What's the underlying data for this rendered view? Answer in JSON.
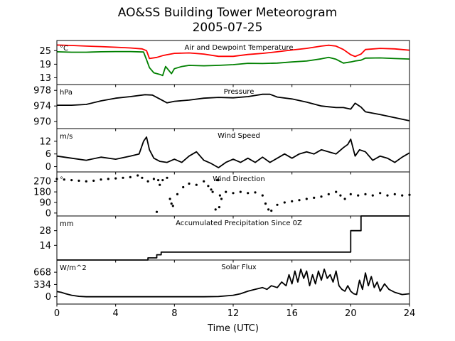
{
  "figure": {
    "title_line1": "AO&SS Building Tower Meteorogram",
    "title_line2": "2005-07-25",
    "xlabel": "Time (UTC)"
  },
  "chart_data": [
    {
      "type": "line",
      "title": "Air and Dewpoint Temperature",
      "unit_label": "°C",
      "yticks": [
        13,
        19,
        25
      ],
      "ylim": [
        10,
        29.5
      ],
      "xlim": [
        0,
        24
      ],
      "series": [
        {
          "color": "#ff0000",
          "x": [
            0,
            1,
            2,
            3,
            4,
            5,
            5.8,
            6.1,
            6.3,
            6.8,
            7.2,
            7.5,
            8,
            9,
            10,
            11,
            12,
            13,
            14,
            15,
            16,
            17,
            18,
            18.5,
            19,
            19.5,
            20,
            20.3,
            20.7,
            21,
            22,
            23,
            24
          ],
          "y": [
            27.5,
            27.3,
            27,
            26.8,
            26.5,
            26.2,
            25.8,
            25,
            21.5,
            22,
            22.8,
            23.2,
            23.8,
            24,
            23.5,
            22.5,
            22.5,
            23.3,
            23.8,
            24.5,
            25.3,
            26,
            27,
            27.4,
            27,
            25.5,
            23.2,
            22.4,
            23.5,
            25.5,
            26,
            25.8,
            25.2
          ]
        },
        {
          "color": "#008000",
          "x": [
            0,
            1,
            2,
            3,
            4,
            5,
            5.9,
            6.1,
            6.3,
            6.6,
            7,
            7.2,
            7.4,
            7.8,
            8,
            8.5,
            9,
            10,
            11,
            12,
            13,
            14,
            15,
            16,
            17,
            18,
            18.5,
            19,
            19.5,
            20,
            20.3,
            20.7,
            21,
            22,
            23,
            24
          ],
          "y": [
            24.5,
            24.3,
            24.3,
            24.5,
            24.6,
            24.6,
            24.4,
            21,
            17.5,
            15.2,
            14.5,
            14,
            18,
            14.8,
            17,
            18,
            18.5,
            18.3,
            18.5,
            18.8,
            19.4,
            19.3,
            19.5,
            20,
            20.4,
            21.4,
            22,
            21.2,
            19.5,
            20,
            20.4,
            20.8,
            21.7,
            21.8,
            21.5,
            21.3
          ]
        }
      ]
    },
    {
      "type": "line",
      "title": "Pressure",
      "unit_label": "hPa",
      "yticks": [
        970,
        974,
        978
      ],
      "ylim": [
        968.2,
        979.5
      ],
      "xlim": [
        0,
        24
      ],
      "series": [
        {
          "color": "#000000",
          "x": [
            0,
            1,
            2,
            3,
            4,
            5,
            6,
            6.5,
            7,
            7.5,
            8,
            9,
            10,
            11,
            12,
            13,
            14,
            14.5,
            15,
            16,
            17,
            18,
            18.5,
            19,
            19.5,
            20,
            20.3,
            20.7,
            21,
            22,
            23,
            24
          ],
          "y": [
            974.2,
            974.2,
            974.4,
            975.3,
            976,
            976.4,
            976.9,
            976.8,
            975.8,
            974.8,
            975.2,
            975.5,
            976,
            976.2,
            976.1,
            976.4,
            977,
            977,
            976.3,
            975.8,
            975,
            974,
            973.8,
            973.6,
            973.6,
            973.2,
            974.7,
            973.7,
            972.5,
            971.8,
            971,
            970.2
          ]
        }
      ]
    },
    {
      "type": "line",
      "title": "Wind Speed",
      "unit_label": "m/s",
      "yticks": [
        0,
        6,
        12
      ],
      "ylim": [
        -2.5,
        18
      ],
      "xlim": [
        0,
        24
      ],
      "series": [
        {
          "color": "#000000",
          "x": [
            0,
            1,
            2,
            3,
            4,
            5,
            5.6,
            5.9,
            6.1,
            6.3,
            6.6,
            7,
            7.5,
            8,
            8.5,
            9,
            9.5,
            10,
            10.5,
            11,
            11.5,
            12,
            12.5,
            13,
            13.5,
            14,
            14.5,
            15,
            15.5,
            16,
            16.5,
            17,
            17.5,
            18,
            18.5,
            19,
            19.5,
            19.8,
            20,
            20.3,
            20.6,
            21,
            21.5,
            22,
            22.5,
            23,
            23.5,
            24
          ],
          "y": [
            5,
            4,
            3,
            4.5,
            3.5,
            5,
            6,
            12,
            14,
            8,
            4,
            2.5,
            2,
            3.5,
            2,
            5,
            7,
            3,
            1.5,
            -0.5,
            2,
            3.5,
            2,
            4,
            2,
            4.5,
            2,
            4,
            6,
            4,
            6,
            7,
            6,
            8,
            7,
            6,
            9,
            10.5,
            13,
            5,
            8,
            7,
            3,
            5,
            4,
            2,
            4.5,
            6.5
          ]
        }
      ]
    },
    {
      "type": "scatter",
      "title": "Wind Direction",
      "unit_label": "°",
      "yticks": [
        0,
        90,
        180,
        270
      ],
      "ylim": [
        -25,
        350
      ],
      "xlim": [
        0,
        24
      ],
      "series": [
        {
          "color": "#000000",
          "x": [
            0,
            0.5,
            1,
            1.5,
            2,
            2.5,
            3,
            3.5,
            4,
            4.5,
            5,
            5.5,
            5.8,
            6.2,
            6.6,
            7,
            7.2,
            7.5,
            6.8,
            6.9,
            7.7,
            7.8,
            7.9,
            8.2,
            8.6,
            9,
            9.5,
            10,
            10.3,
            10.5,
            10.6,
            10.8,
            10.9,
            11,
            11.05,
            11.1,
            11.2,
            11.5,
            12,
            12.5,
            13,
            13.5,
            14,
            14.2,
            14.4,
            14.6,
            15,
            15.5,
            16,
            16.5,
            17,
            17.5,
            18,
            18.5,
            19,
            19.3,
            19.6,
            20,
            20.5,
            21,
            21.5,
            22,
            22.5,
            23,
            23.5,
            24
          ],
          "y": [
            290,
            285,
            280,
            275,
            270,
            275,
            285,
            290,
            295,
            300,
            305,
            320,
            300,
            270,
            290,
            240,
            280,
            300,
            10,
            280,
            120,
            80,
            60,
            160,
            220,
            250,
            240,
            270,
            230,
            200,
            180,
            30,
            280,
            280,
            50,
            150,
            120,
            180,
            170,
            180,
            170,
            175,
            150,
            80,
            30,
            20,
            70,
            90,
            100,
            110,
            120,
            130,
            140,
            160,
            180,
            150,
            120,
            160,
            150,
            160,
            150,
            170,
            150,
            160,
            150,
            155
          ]
        }
      ]
    },
    {
      "type": "line",
      "title": "Accumulated Precipitation Since 0Z",
      "unit_label": "mm",
      "yticks": [
        14,
        28
      ],
      "ylim": [
        0,
        42
      ],
      "xlim": [
        0,
        24
      ],
      "series": [
        {
          "color": "#000000",
          "x": [
            0,
            6.2,
            6.2,
            6.8,
            6.8,
            7.1,
            7.1,
            20,
            20,
            20.7,
            20.7,
            24
          ],
          "y": [
            0,
            0,
            2,
            2,
            5,
            5,
            7.5,
            7.5,
            28,
            28,
            42,
            42
          ]
        }
      ]
    },
    {
      "type": "line",
      "title": "Solar Flux",
      "unit_label": "W/m^2",
      "yticks": [
        0,
        334,
        668
      ],
      "ylim": [
        -200,
        1000
      ],
      "xlim": [
        0,
        24
      ],
      "series": [
        {
          "color": "#000000",
          "x": [
            0,
            0.3,
            0.6,
            1,
            1.5,
            2,
            3,
            4,
            5,
            6,
            7,
            8,
            9,
            10,
            11,
            12,
            12.5,
            13,
            13.5,
            14,
            14.3,
            14.6,
            15,
            15.3,
            15.6,
            15.8,
            16,
            16.2,
            16.4,
            16.6,
            16.8,
            17,
            17.2,
            17.4,
            17.6,
            17.8,
            18,
            18.2,
            18.4,
            18.6,
            18.8,
            19,
            19.2,
            19.4,
            19.6,
            19.8,
            20,
            20.2,
            20.4,
            20.6,
            20.8,
            21,
            21.2,
            21.4,
            21.6,
            21.8,
            22,
            22.3,
            22.6,
            23,
            23.5,
            24
          ],
          "y": [
            140,
            120,
            80,
            40,
            10,
            0,
            0,
            0,
            0,
            0,
            0,
            0,
            0,
            0,
            5,
            40,
            80,
            150,
            200,
            250,
            200,
            300,
            250,
            400,
            300,
            600,
            350,
            700,
            400,
            750,
            500,
            700,
            300,
            600,
            350,
            700,
            450,
            750,
            500,
            600,
            400,
            700,
            300,
            200,
            150,
            300,
            150,
            80,
            60,
            450,
            200,
            650,
            300,
            550,
            250,
            400,
            150,
            350,
            200,
            120,
            60,
            80
          ]
        }
      ]
    }
  ],
  "shared_x_axis": {
    "ticks": [
      0,
      4,
      8,
      12,
      16,
      20,
      24
    ],
    "range": [
      0,
      24
    ]
  }
}
